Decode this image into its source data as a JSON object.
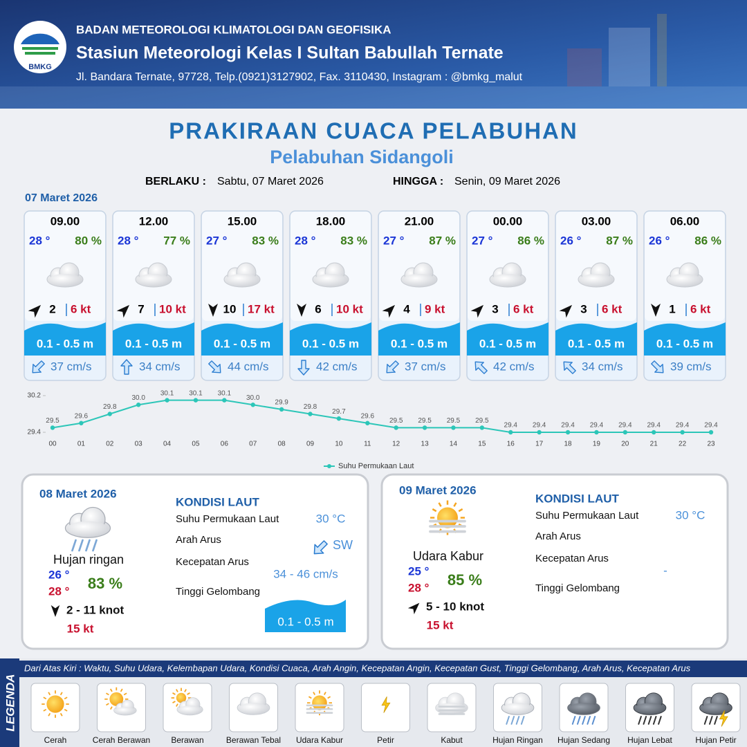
{
  "header": {
    "logo": "BMKG",
    "agency": "BADAN METEOROLOGI KLIMATOLOGI DAN GEOFISIKA",
    "station": "Stasiun Meteorologi Kelas I Sultan Babullah Ternate",
    "address": "Jl. Bandara Ternate, 97728, Telp.(0921)3127902, Fax. 3110430, Instagram : @bmkg_malut"
  },
  "title": "PRAKIRAAN CUACA PELABUHAN",
  "subtitle": "Pelabuhan Sidangoli",
  "validity": {
    "from_label": "BERLAKU :",
    "from": "Sabtu, 07 Maret 2026",
    "to_label": "HINGGA :",
    "to": "Senin, 09 Maret 2026"
  },
  "day1": {
    "date": "07 Maret 2026",
    "slots": [
      {
        "time": "09.00",
        "temp": "28 °",
        "humidity": "80 %",
        "wind": "2",
        "gust": "6 kt",
        "wave": "0.1 - 0.5 m",
        "current": "37 cm/s"
      },
      {
        "time": "12.00",
        "temp": "28 °",
        "humidity": "77 %",
        "wind": "7",
        "gust": "10 kt",
        "wave": "0.1 - 0.5 m",
        "current": "34 cm/s"
      },
      {
        "time": "15.00",
        "temp": "27 °",
        "humidity": "83 %",
        "wind": "10",
        "gust": "17 kt",
        "wave": "0.1 - 0.5 m",
        "current": "44 cm/s"
      },
      {
        "time": "18.00",
        "temp": "28 °",
        "humidity": "83 %",
        "wind": "6",
        "gust": "10 kt",
        "wave": "0.1 - 0.5 m",
        "current": "42 cm/s"
      },
      {
        "time": "21.00",
        "temp": "27 °",
        "humidity": "87 %",
        "wind": "4",
        "gust": "9 kt",
        "wave": "0.1 - 0.5 m",
        "current": "37 cm/s"
      },
      {
        "time": "00.00",
        "temp": "27 °",
        "humidity": "86 %",
        "wind": "3",
        "gust": "6 kt",
        "wave": "0.1 - 0.5 m",
        "current": "42 cm/s"
      },
      {
        "time": "03.00",
        "temp": "26 °",
        "humidity": "87 %",
        "wind": "3",
        "gust": "6 kt",
        "wave": "0.1 - 0.5 m",
        "current": "34 cm/s"
      },
      {
        "time": "06.00",
        "temp": "26 °",
        "humidity": "86 %",
        "wind": "1",
        "gust": "6 kt",
        "wave": "0.1 - 0.5 m",
        "current": "39 cm/s"
      }
    ]
  },
  "chart_data": {
    "type": "line",
    "categories": [
      "00",
      "01",
      "02",
      "03",
      "04",
      "05",
      "06",
      "07",
      "08",
      "09",
      "10",
      "11",
      "12",
      "13",
      "14",
      "15",
      "16",
      "17",
      "18",
      "19",
      "20",
      "21",
      "22",
      "23"
    ],
    "series": [
      {
        "name": "Suhu Permukaan Laut",
        "color": "#2cc6b8",
        "values": [
          29.5,
          29.6,
          29.8,
          30.0,
          30.1,
          30.1,
          30.1,
          30.0,
          29.9,
          29.8,
          29.7,
          29.6,
          29.5,
          29.5,
          29.5,
          29.5,
          29.4,
          29.4,
          29.4,
          29.4,
          29.4,
          29.4,
          29.4,
          29.4
        ],
        "value_labels": [
          "29.5",
          "29.6",
          "29.8",
          "30.0",
          "30.1",
          "30.1",
          "30.1",
          "30.0",
          "29.9",
          "29.8",
          "29.7",
          "29.6",
          "29.5",
          "29.5",
          "29.5",
          "29.5",
          "29.4",
          "29.4",
          "29.4",
          "29.4",
          "29.4",
          "29.4",
          "29.4",
          "29.4"
        ]
      }
    ],
    "ylim": [
      29.4,
      30.2
    ],
    "yticks": [
      29.4,
      30.2
    ],
    "legend": "bottom"
  },
  "day2": {
    "date": "08 Maret 2026",
    "weather": "Hujan ringan",
    "temp_min": "26 °",
    "temp_max": "28 °",
    "humidity": "83 %",
    "wind": "2  - 11 knot",
    "gust": "15 kt",
    "sea": {
      "heading": "KONDISI LAUT",
      "sst_label": "Suhu Permukaan Laut",
      "sst": "30 °C",
      "dir_label": "Arah Arus",
      "dir": "SW",
      "speed_label": "Kecepatan Arus",
      "speed": "34  - 46 cm/s",
      "wave_label": "Tinggi Gelombang",
      "wave": "0.1 - 0.5 m"
    }
  },
  "day3": {
    "date": "09 Maret 2026",
    "weather": "Udara Kabur",
    "temp_min": "25 °",
    "temp_max": "28 °",
    "humidity": "85 %",
    "wind": "5  - 10 knot",
    "gust": "15 kt",
    "sea": {
      "heading": "KONDISI LAUT",
      "sst_label": "Suhu Permukaan Laut",
      "sst": "30 °C",
      "dir_label": "Arah Arus",
      "speed_label": "Kecepatan Arus",
      "speed": "-",
      "wave_label": "Tinggi Gelombang"
    }
  },
  "legend": {
    "title": "LEGENDA",
    "note": "Dari Atas Kiri : Waktu, Suhu Udara, Kelembapan Udara, Kondisi Cuaca, Arah Angin, Kecepatan Angin, Kecepatan Gust, Tinggi Gelombang, Arah Arus, Kecepatan Arus",
    "items": [
      "Cerah",
      "Cerah Berawan",
      "Berawan",
      "Berawan Tebal",
      "Udara Kabur",
      "Petir",
      "Kabut",
      "Hujan Ringan",
      "Hujan Sedang",
      "Hujan Lebat",
      "Hujan Petir"
    ]
  }
}
